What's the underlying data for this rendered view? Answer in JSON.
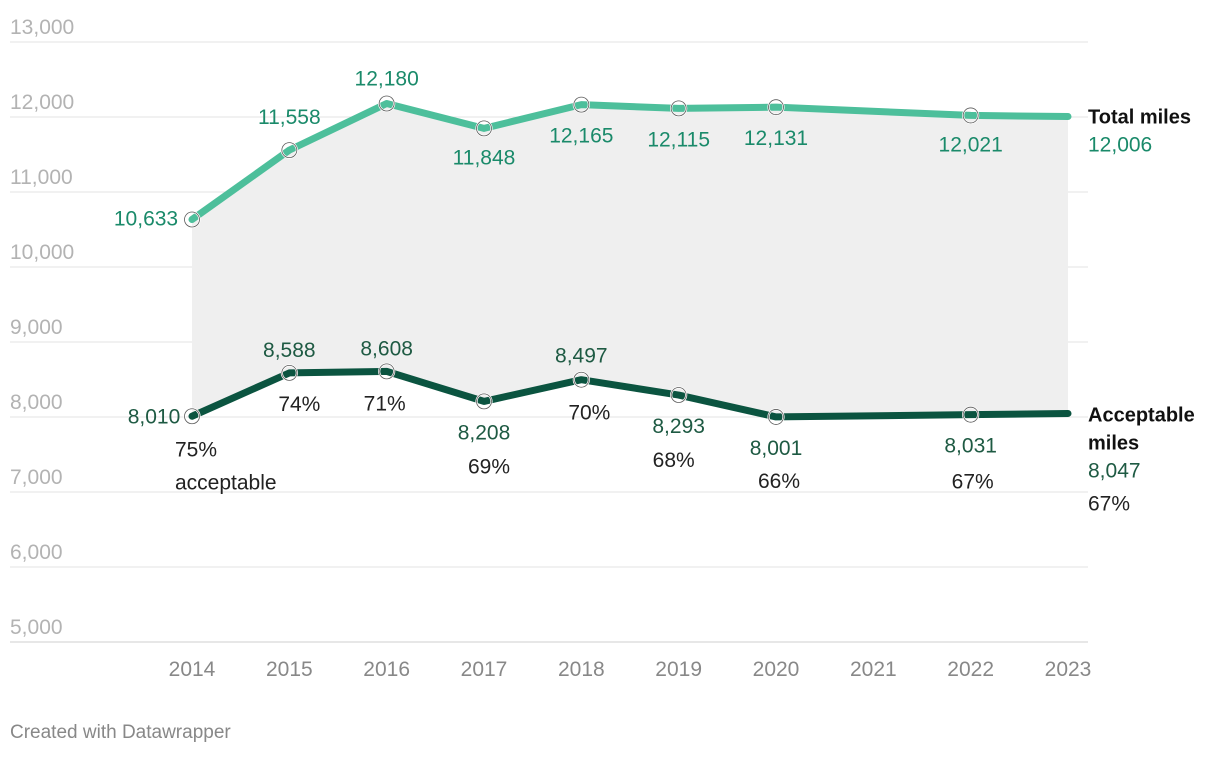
{
  "chart_data": {
    "type": "line",
    "title": "",
    "xlabel": "",
    "ylabel": "",
    "ylim": [
      5000,
      13000
    ],
    "y_ticks": [
      "5,000",
      "6,000",
      "7,000",
      "8,000",
      "9,000",
      "10,000",
      "11,000",
      "12,000",
      "13,000"
    ],
    "y_tick_values": [
      5000,
      6000,
      7000,
      8000,
      9000,
      10000,
      11000,
      12000,
      13000
    ],
    "x": [
      2014,
      2015,
      2016,
      2017,
      2018,
      2019,
      2020,
      2022,
      2023
    ],
    "x_ticks": [
      "2014",
      "2015",
      "2016",
      "2017",
      "2018",
      "2019",
      "2020",
      "2021",
      "2022",
      "2023"
    ],
    "x_tick_values": [
      2014,
      2015,
      2016,
      2017,
      2018,
      2019,
      2020,
      2021,
      2022,
      2023
    ],
    "grid": true,
    "series": [
      {
        "name": "Total miles",
        "color": "#4dbf9b",
        "label_color": "#1a8a6a",
        "values": [
          10633,
          11558,
          12180,
          11848,
          12165,
          12115,
          12131,
          12021,
          12006
        ],
        "labels": [
          "10,633",
          "11,558",
          "12,180",
          "11,848",
          "12,165",
          "12,115",
          "12,131",
          "12,021",
          "12,006"
        ]
      },
      {
        "name": "Acceptable miles",
        "name_lines": [
          "Acceptable",
          "miles"
        ],
        "color": "#0b5440",
        "label_color": "#1e5a43",
        "values": [
          8010,
          8588,
          8608,
          8208,
          8497,
          8293,
          8001,
          8031,
          8047
        ],
        "labels": [
          "8,010",
          "8,588",
          "8,608",
          "8,208",
          "8,497",
          "8,293",
          "8,001",
          "8,031",
          "8,047"
        ],
        "percent_labels": [
          "75%",
          "74%",
          "71%",
          "69%",
          "70%",
          "68%",
          "66%",
          "67%",
          "67%"
        ],
        "first_percent_suffix": "acceptable"
      }
    ],
    "shaded_area_between_series": true,
    "area_color": "#efefef"
  },
  "credit": "Created with Datawrapper"
}
